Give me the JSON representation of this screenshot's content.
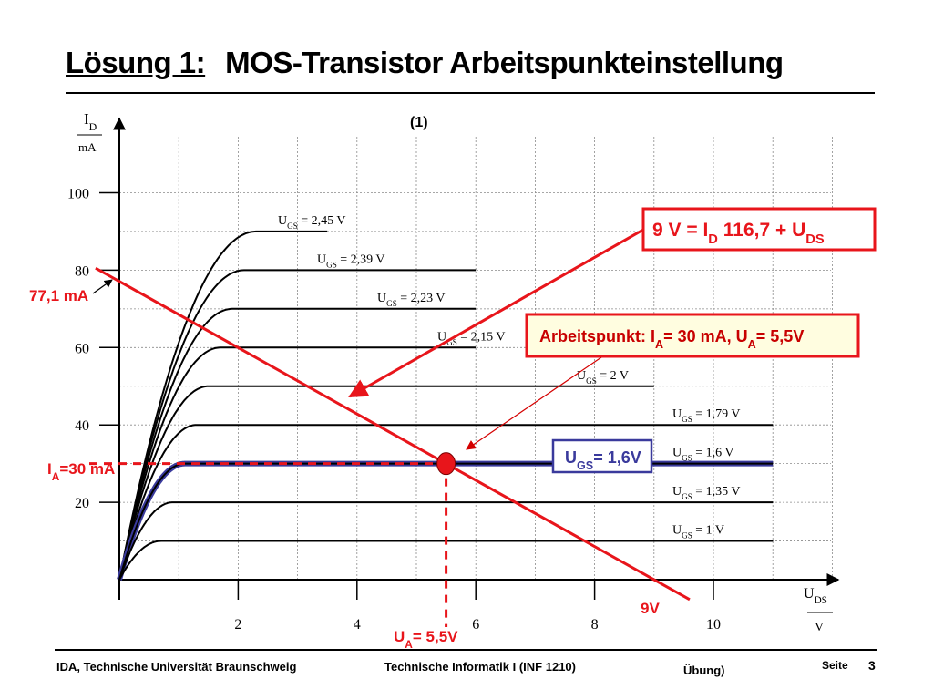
{
  "title": {
    "number": "Lösung 1:",
    "text": "MOS-Transistor Arbeitspunkteinstellung"
  },
  "footer": {
    "left": "IDA, Technische Universität Braunschweig",
    "center": "Technische Informatik I (INF 1210)",
    "right": "Übung)",
    "page_label": "Seite",
    "page_number": "3"
  },
  "chart_data": {
    "type": "line",
    "figure_label": "(1)",
    "ylabel": {
      "main": "I",
      "sub": "D",
      "unit": "mA"
    },
    "xlabel": {
      "main": "U",
      "sub": "DS",
      "unit": "V"
    },
    "xlim": [
      0,
      12
    ],
    "ylim": [
      0,
      115
    ],
    "x_ticks": [
      "2",
      "4",
      "6",
      "8",
      "10"
    ],
    "y_ticks": [
      "20",
      "40",
      "60",
      "80",
      "100"
    ],
    "grid": true,
    "colors": {
      "curve": "#000000",
      "highlight": "#3a3a9c",
      "annotation": "#e8151b",
      "arrow_thin": "#d40000"
    },
    "series": [
      {
        "label": "2,45 V",
        "ugs": 2.45,
        "i_sat": 90,
        "x_end": 3.5
      },
      {
        "label": "2,39  V",
        "ugs": 2.39,
        "i_sat": 80,
        "x_end": 6.0
      },
      {
        "label": "2,23 V",
        "ugs": 2.23,
        "i_sat": 70,
        "x_end": 6.0
      },
      {
        "label": "2,15 V",
        "ugs": 2.15,
        "i_sat": 60,
        "x_end": 6.0
      },
      {
        "label": "2 V",
        "ugs": 2.0,
        "i_sat": 50,
        "x_end": 9.0
      },
      {
        "label": "1,79 V",
        "ugs": 1.79,
        "i_sat": 40,
        "x_end": 11.0
      },
      {
        "label": "1,6 V",
        "ugs": 1.6,
        "i_sat": 30,
        "x_end": 11.0,
        "highlight": true
      },
      {
        "label": "1,35 V",
        "ugs": 1.35,
        "i_sat": 20,
        "x_end": 11.0
      },
      {
        "label": "1 V",
        "ugs": 1.0,
        "i_sat": 10,
        "x_end": 11.0
      }
    ],
    "series_prefix": {
      "main": "U",
      "sub": "GS",
      "eq": "="
    },
    "load_line": {
      "u_supply": 9,
      "i_max": 77.1,
      "x_start": -0.4,
      "x_end": 9.6
    },
    "operating_point": {
      "x": 5.5,
      "y": 30
    },
    "annotations": {
      "equation": {
        "pre": "9 V = I",
        "sub": "D",
        "mid": " 116,7 + U",
        "sub2": "DS"
      },
      "arbeitspunkt": {
        "pre": "Arbeitspunkt: I",
        "sub": "A",
        "mid": "= 30 mA, U",
        "sub2": "A",
        "post": "= 5,5V"
      },
      "ugs_box": {
        "pre": "U",
        "sub": "GS",
        "post": "= 1,6V"
      },
      "i_max": "77,1 mA",
      "i_a": {
        "pre": "I",
        "sub": "A",
        "post": "=30 mA"
      },
      "u_a": {
        "pre": "U",
        "sub": "A",
        "post": "= 5,5V"
      },
      "u_supply": "9V"
    }
  }
}
